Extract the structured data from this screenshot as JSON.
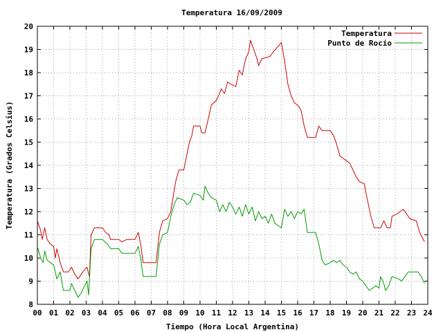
{
  "chart_data": {
    "type": "line",
    "title": "Temperatura 16/09/2009",
    "xlabel": "Tiempo (Hora Local Argentina)",
    "ylabel": "Temperatura (Grados Celsius)",
    "xlim": [
      0,
      24
    ],
    "ylim": [
      8,
      20
    ],
    "x_ticks": [
      "00",
      "01",
      "02",
      "03",
      "04",
      "05",
      "06",
      "07",
      "08",
      "09",
      "10",
      "11",
      "12",
      "13",
      "14",
      "15",
      "16",
      "17",
      "18",
      "19",
      "20",
      "21",
      "22",
      "23",
      "24"
    ],
    "y_ticks": [
      8,
      9,
      10,
      11,
      12,
      13,
      14,
      15,
      16,
      17,
      18,
      19,
      20
    ],
    "grid": true,
    "legend_position": "top-right",
    "series": [
      {
        "name": "Temperatura",
        "color": "#cc0000",
        "points": [
          [
            0.0,
            11.6
          ],
          [
            0.2,
            11.2
          ],
          [
            0.3,
            10.8
          ],
          [
            0.45,
            11.3
          ],
          [
            0.6,
            10.8
          ],
          [
            0.8,
            10.6
          ],
          [
            1.0,
            10.5
          ],
          [
            1.1,
            10.0
          ],
          [
            1.2,
            10.4
          ],
          [
            1.4,
            9.8
          ],
          [
            1.6,
            9.4
          ],
          [
            1.9,
            9.4
          ],
          [
            2.1,
            9.6
          ],
          [
            2.3,
            9.3
          ],
          [
            2.5,
            9.1
          ],
          [
            2.7,
            9.3
          ],
          [
            2.9,
            9.5
          ],
          [
            3.05,
            9.6
          ],
          [
            3.2,
            9.2
          ],
          [
            3.3,
            11.0
          ],
          [
            3.5,
            11.3
          ],
          [
            4.0,
            11.3
          ],
          [
            4.2,
            11.1
          ],
          [
            4.4,
            11.0
          ],
          [
            4.5,
            10.8
          ],
          [
            5.0,
            10.8
          ],
          [
            5.2,
            10.7
          ],
          [
            5.5,
            10.8
          ],
          [
            6.0,
            10.8
          ],
          [
            6.2,
            11.1
          ],
          [
            6.35,
            10.6
          ],
          [
            6.5,
            9.8
          ],
          [
            7.3,
            9.8
          ],
          [
            7.5,
            11.1
          ],
          [
            7.7,
            11.6
          ],
          [
            8.0,
            11.7
          ],
          [
            8.2,
            12.0
          ],
          [
            8.5,
            13.3
          ],
          [
            8.7,
            13.8
          ],
          [
            9.0,
            13.8
          ],
          [
            9.2,
            14.5
          ],
          [
            9.35,
            15.0
          ],
          [
            9.5,
            15.3
          ],
          [
            9.6,
            15.7
          ],
          [
            10.0,
            15.7
          ],
          [
            10.1,
            15.4
          ],
          [
            10.3,
            15.4
          ],
          [
            10.5,
            16.0
          ],
          [
            10.7,
            16.6
          ],
          [
            11.0,
            16.8
          ],
          [
            11.2,
            17.1
          ],
          [
            11.3,
            17.3
          ],
          [
            11.5,
            17.1
          ],
          [
            11.7,
            17.6
          ],
          [
            11.9,
            17.5
          ],
          [
            12.2,
            17.4
          ],
          [
            12.4,
            18.1
          ],
          [
            12.6,
            17.9
          ],
          [
            12.8,
            18.6
          ],
          [
            13.0,
            18.9
          ],
          [
            13.1,
            19.4
          ],
          [
            13.3,
            19.0
          ],
          [
            13.5,
            18.6
          ],
          [
            13.6,
            18.3
          ],
          [
            13.8,
            18.6
          ],
          [
            14.3,
            18.7
          ],
          [
            14.5,
            18.9
          ],
          [
            15.0,
            19.3
          ],
          [
            15.2,
            18.5
          ],
          [
            15.4,
            17.5
          ],
          [
            15.6,
            17.0
          ],
          [
            15.8,
            16.7
          ],
          [
            16.0,
            16.6
          ],
          [
            16.2,
            16.4
          ],
          [
            16.4,
            15.7
          ],
          [
            16.6,
            15.2
          ],
          [
            17.1,
            15.2
          ],
          [
            17.3,
            15.7
          ],
          [
            17.5,
            15.5
          ],
          [
            18.0,
            15.5
          ],
          [
            18.2,
            15.3
          ],
          [
            18.4,
            14.9
          ],
          [
            18.6,
            14.4
          ],
          [
            19.0,
            14.2
          ],
          [
            19.2,
            14.1
          ],
          [
            19.4,
            13.8
          ],
          [
            19.6,
            13.5
          ],
          [
            19.8,
            13.3
          ],
          [
            20.1,
            13.2
          ],
          [
            20.2,
            12.8
          ],
          [
            20.5,
            11.8
          ],
          [
            20.7,
            11.3
          ],
          [
            21.1,
            11.3
          ],
          [
            21.3,
            11.6
          ],
          [
            21.5,
            11.3
          ],
          [
            21.7,
            11.3
          ],
          [
            21.8,
            11.8
          ],
          [
            22.1,
            11.9
          ],
          [
            22.3,
            12.0
          ],
          [
            22.5,
            12.1
          ],
          [
            22.7,
            11.9
          ],
          [
            22.9,
            11.7
          ],
          [
            23.3,
            11.6
          ],
          [
            23.5,
            11.1
          ],
          [
            23.8,
            10.7
          ]
        ]
      },
      {
        "name": "Punto de Rocío",
        "color": "#009900",
        "points": [
          [
            0.0,
            10.5
          ],
          [
            0.2,
            10.0
          ],
          [
            0.35,
            9.8
          ],
          [
            0.45,
            10.3
          ],
          [
            0.6,
            9.9
          ],
          [
            0.8,
            9.8
          ],
          [
            1.0,
            9.7
          ],
          [
            1.2,
            9.1
          ],
          [
            1.4,
            9.4
          ],
          [
            1.6,
            8.6
          ],
          [
            2.0,
            8.6
          ],
          [
            2.1,
            8.9
          ],
          [
            2.3,
            8.6
          ],
          [
            2.5,
            8.3
          ],
          [
            2.7,
            8.5
          ],
          [
            2.9,
            8.8
          ],
          [
            3.05,
            9.0
          ],
          [
            3.15,
            8.4
          ],
          [
            3.3,
            10.4
          ],
          [
            3.5,
            10.8
          ],
          [
            4.0,
            10.8
          ],
          [
            4.3,
            10.6
          ],
          [
            4.5,
            10.4
          ],
          [
            5.0,
            10.4
          ],
          [
            5.2,
            10.2
          ],
          [
            5.5,
            10.2
          ],
          [
            6.0,
            10.2
          ],
          [
            6.2,
            10.5
          ],
          [
            6.35,
            10.0
          ],
          [
            6.5,
            9.2
          ],
          [
            7.3,
            9.2
          ],
          [
            7.5,
            10.6
          ],
          [
            7.7,
            11.0
          ],
          [
            8.0,
            11.1
          ],
          [
            8.2,
            11.8
          ],
          [
            8.4,
            12.3
          ],
          [
            8.6,
            12.6
          ],
          [
            9.0,
            12.5
          ],
          [
            9.2,
            12.3
          ],
          [
            9.4,
            12.4
          ],
          [
            9.6,
            12.8
          ],
          [
            10.0,
            12.7
          ],
          [
            10.2,
            12.5
          ],
          [
            10.3,
            13.1
          ],
          [
            10.5,
            12.8
          ],
          [
            10.7,
            12.6
          ],
          [
            11.0,
            12.5
          ],
          [
            11.2,
            12.0
          ],
          [
            11.4,
            12.3
          ],
          [
            11.6,
            12.0
          ],
          [
            11.8,
            12.4
          ],
          [
            12.0,
            12.2
          ],
          [
            12.2,
            11.9
          ],
          [
            12.4,
            12.2
          ],
          [
            12.6,
            11.8
          ],
          [
            12.8,
            12.3
          ],
          [
            13.0,
            11.9
          ],
          [
            13.2,
            12.2
          ],
          [
            13.4,
            11.6
          ],
          [
            13.6,
            12.0
          ],
          [
            13.8,
            11.7
          ],
          [
            14.0,
            11.8
          ],
          [
            14.2,
            11.5
          ],
          [
            14.4,
            11.9
          ],
          [
            14.6,
            11.5
          ],
          [
            14.8,
            11.4
          ],
          [
            15.0,
            11.3
          ],
          [
            15.2,
            12.1
          ],
          [
            15.4,
            11.8
          ],
          [
            15.6,
            12.0
          ],
          [
            15.8,
            11.7
          ],
          [
            16.0,
            12.0
          ],
          [
            16.2,
            11.9
          ],
          [
            16.4,
            12.1
          ],
          [
            16.6,
            11.1
          ],
          [
            17.1,
            11.1
          ],
          [
            17.3,
            10.6
          ],
          [
            17.5,
            9.9
          ],
          [
            17.7,
            9.7
          ],
          [
            18.0,
            9.8
          ],
          [
            18.2,
            9.9
          ],
          [
            18.4,
            9.8
          ],
          [
            18.6,
            9.9
          ],
          [
            18.8,
            9.7
          ],
          [
            19.0,
            9.6
          ],
          [
            19.2,
            9.4
          ],
          [
            19.4,
            9.3
          ],
          [
            19.6,
            9.4
          ],
          [
            19.8,
            9.1
          ],
          [
            20.0,
            9.0
          ],
          [
            20.2,
            8.8
          ],
          [
            20.4,
            8.6
          ],
          [
            20.6,
            8.7
          ],
          [
            20.8,
            8.8
          ],
          [
            21.0,
            8.7
          ],
          [
            21.1,
            9.2
          ],
          [
            21.3,
            8.9
          ],
          [
            21.4,
            8.6
          ],
          [
            21.6,
            8.8
          ],
          [
            21.8,
            9.2
          ],
          [
            22.2,
            9.1
          ],
          [
            22.4,
            9.0
          ],
          [
            22.6,
            9.2
          ],
          [
            22.8,
            9.4
          ],
          [
            23.0,
            9.4
          ],
          [
            23.4,
            9.4
          ],
          [
            23.6,
            9.2
          ],
          [
            23.8,
            8.9
          ]
        ]
      }
    ]
  }
}
